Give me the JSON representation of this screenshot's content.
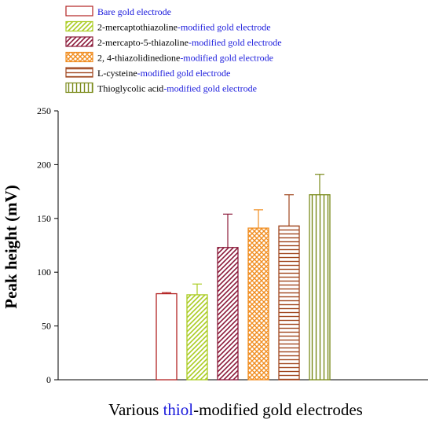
{
  "chart_data": {
    "type": "bar",
    "ylabel": "Peak height (mV)",
    "xlabel_parts": [
      "Various ",
      "thiol",
      "-modified gold electrodes"
    ],
    "ylim": [
      0,
      250
    ],
    "yticks": [
      0,
      50,
      100,
      150,
      200,
      250
    ],
    "grid": false,
    "legend_position": "top-left",
    "series": [
      {
        "name_parts": [
          "Bare gold electrode",
          ""
        ],
        "value": 80,
        "error": 1,
        "color": "#b22222",
        "pattern": "none"
      },
      {
        "name_parts": [
          "2-mercaptothiazoline",
          "-modified gold electrode"
        ],
        "value": 79,
        "error": 10,
        "color": "#aacc22",
        "pattern": "diag"
      },
      {
        "name_parts": [
          "2-mercapto-5-thiazoline",
          "-modified gold electrode"
        ],
        "value": 123,
        "error": 31,
        "color": "#8b1a3a",
        "pattern": "diag"
      },
      {
        "name_parts": [
          "2, 4-thiazolidinedione",
          "-modified gold electrode"
        ],
        "value": 141,
        "error": 17,
        "color": "#f08c1e",
        "pattern": "cross"
      },
      {
        "name_parts": [
          "L-cysteine",
          "-modified gold electrode"
        ],
        "value": 143,
        "error": 29,
        "color": "#a0461e",
        "pattern": "horiz"
      },
      {
        "name_parts": [
          "Thioglycolic acid",
          "-modified gold electrode"
        ],
        "value": 172,
        "error": 19,
        "color": "#7a8a1a",
        "pattern": "vert"
      }
    ],
    "colors": {
      "axis": "#000000",
      "highlight_text": "#1a1adc",
      "label_text": "#000000"
    }
  }
}
